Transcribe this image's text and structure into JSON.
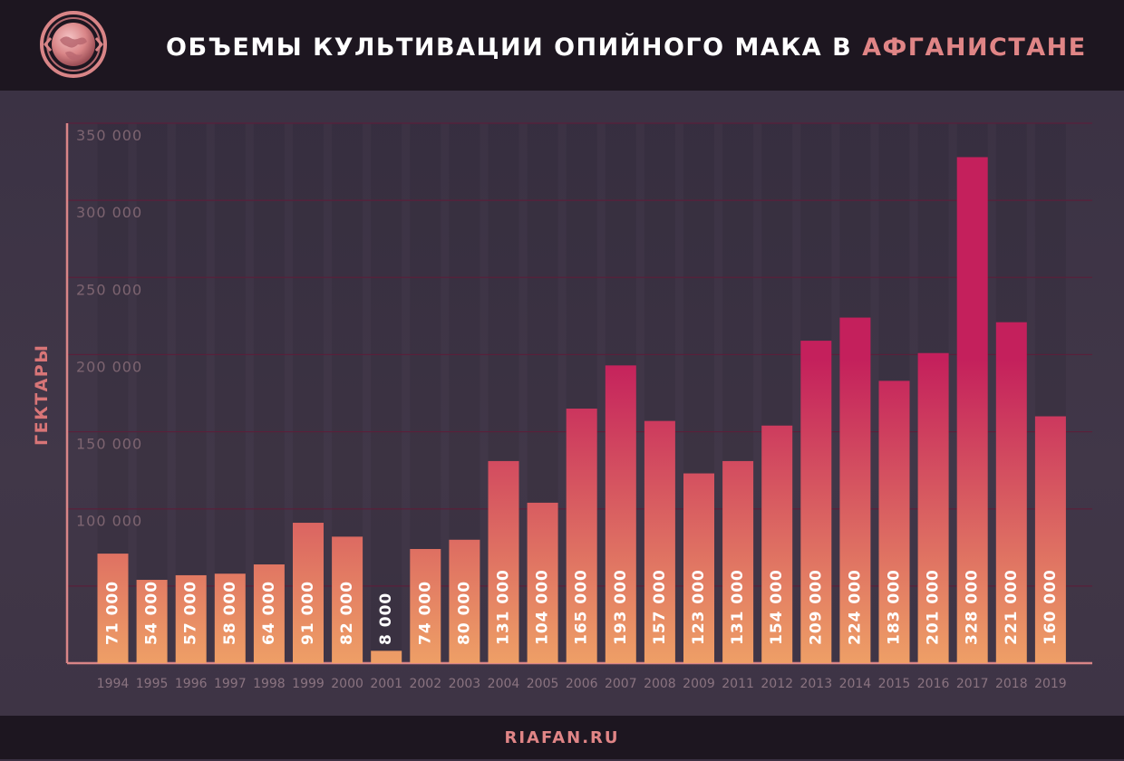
{
  "header": {
    "title_main": "ОБЪЕМЫ КУЛЬТИВАЦИИ ОПИЙНОГО МАКА В ",
    "title_accent": "АФГАНИСТАНЕ"
  },
  "footer": {
    "site": "RIAFAN.RU"
  },
  "colors": {
    "accent": "#e08586",
    "bar_top": "#c4205c",
    "bar_bottom": "#ee9f66",
    "header_bg": "#1d1620",
    "plot_bg": "#3a3042"
  },
  "chart_data": {
    "type": "bar",
    "title": "ОБЪЕМЫ КУЛЬТИВАЦИИ ОПИЙНОГО МАКА В АФГАНИСТАНЕ",
    "ylabel": "ГЕКТАРЫ",
    "xlabel": "",
    "ylim": [
      0,
      350000
    ],
    "yticks": [
      100000,
      150000,
      200000,
      250000,
      300000,
      350000
    ],
    "ytick_labels": [
      "100 000",
      "150 000",
      "200 000",
      "250 000",
      "300 000",
      "350 000"
    ],
    "grid": true,
    "categories": [
      "1994",
      "1995",
      "1996",
      "1997",
      "1998",
      "1999",
      "2000",
      "2001",
      "2002",
      "2003",
      "2004",
      "2005",
      "2006",
      "2007",
      "2008",
      "2009",
      "2011",
      "2012",
      "2013",
      "2014",
      "2015",
      "2016",
      "2017",
      "2018",
      "2019"
    ],
    "values": [
      71000,
      54000,
      57000,
      58000,
      64000,
      91000,
      82000,
      8000,
      74000,
      80000,
      131000,
      104000,
      165000,
      193000,
      157000,
      123000,
      131000,
      154000,
      209000,
      224000,
      183000,
      201000,
      328000,
      221000,
      160000
    ],
    "value_labels": [
      "71 000",
      "54 000",
      "57 000",
      "58 000",
      "64 000",
      "91 000",
      "82 000",
      "8 000",
      "74 000",
      "80 000",
      "131 000",
      "104 000",
      "165 000",
      "193 000",
      "157 000",
      "123 000",
      "131 000",
      "154 000",
      "209 000",
      "224 000",
      "183 000",
      "201 000",
      "328 000",
      "221 000",
      "160 000"
    ]
  }
}
